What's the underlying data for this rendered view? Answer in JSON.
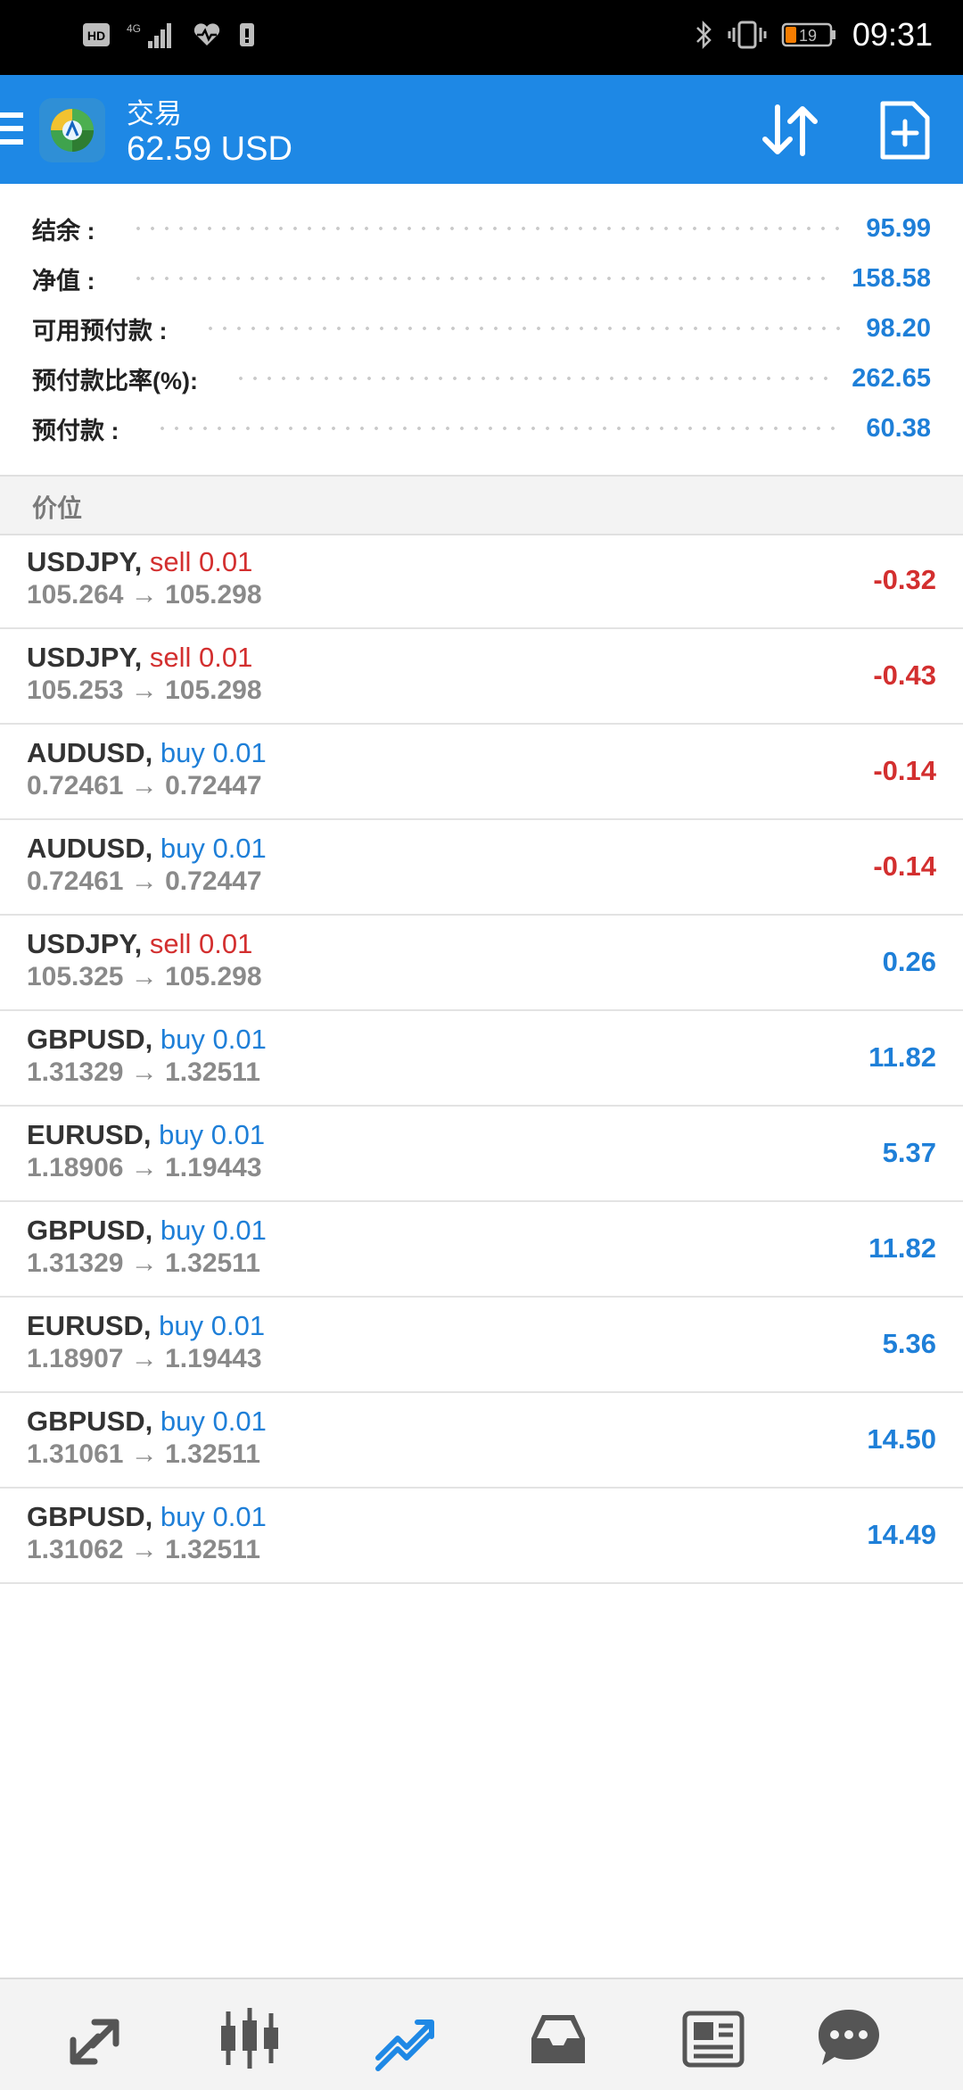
{
  "status_bar": {
    "hd_label": "HD",
    "network_label": "4G",
    "battery_level": "19",
    "time": "09:31"
  },
  "header": {
    "title": "交易",
    "balance": "62.59 USD",
    "icons": [
      "menu-icon",
      "metatrader-logo",
      "sort-icon",
      "new-order-icon"
    ],
    "accent_color": "#1e88e5"
  },
  "summary": [
    {
      "label": "结余 :",
      "value": "95.99"
    },
    {
      "label": "净值 :",
      "value": "158.58"
    },
    {
      "label": "可用预付款 :",
      "value": "98.20"
    },
    {
      "label": "预付款比率(%):",
      "value": "262.65"
    },
    {
      "label": "预付款 :",
      "value": "60.38"
    }
  ],
  "section": {
    "title": "价位"
  },
  "positions": [
    {
      "symbol": "USDJPY,",
      "type": "sell 0.01",
      "prices": "105.264 → 105.298",
      "profit": "-0.32"
    },
    {
      "symbol": "USDJPY,",
      "type": "sell 0.01",
      "prices": "105.253 → 105.298",
      "profit": "-0.43"
    },
    {
      "symbol": "AUDUSD,",
      "type": "buy 0.01",
      "prices": "0.72461 → 0.72447",
      "profit": "-0.14"
    },
    {
      "symbol": "AUDUSD,",
      "type": "buy 0.01",
      "prices": "0.72461 → 0.72447",
      "profit": "-0.14"
    },
    {
      "symbol": "USDJPY,",
      "type": "sell 0.01",
      "prices": "105.325 → 105.298",
      "profit": "0.26"
    },
    {
      "symbol": "GBPUSD,",
      "type": "buy 0.01",
      "prices": "1.31329 → 1.32511",
      "profit": "11.82"
    },
    {
      "symbol": "EURUSD,",
      "type": "buy 0.01",
      "prices": "1.18906 → 1.19443",
      "profit": "5.37"
    },
    {
      "symbol": "GBPUSD,",
      "type": "buy 0.01",
      "prices": "1.31329 → 1.32511",
      "profit": "11.82"
    },
    {
      "symbol": "EURUSD,",
      "type": "buy 0.01",
      "prices": "1.18907 → 1.19443",
      "profit": "5.36"
    },
    {
      "symbol": "GBPUSD,",
      "type": "buy 0.01",
      "prices": "1.31061 → 1.32511",
      "profit": "14.50"
    },
    {
      "symbol": "GBPUSD,",
      "type": "buy 0.01",
      "prices": "1.31062 → 1.32511",
      "profit": "14.49"
    }
  ],
  "bottom_nav": {
    "items": [
      "quotes-icon",
      "chart-icon",
      "trade-icon",
      "history-icon",
      "news-icon",
      "chat-icon"
    ],
    "active": "trade-icon"
  },
  "colors": {
    "sell": "#d32f2f",
    "buy": "#1e7fd8",
    "profit_negative": "#d32f2f",
    "profit_positive": "#1e7fd8"
  }
}
